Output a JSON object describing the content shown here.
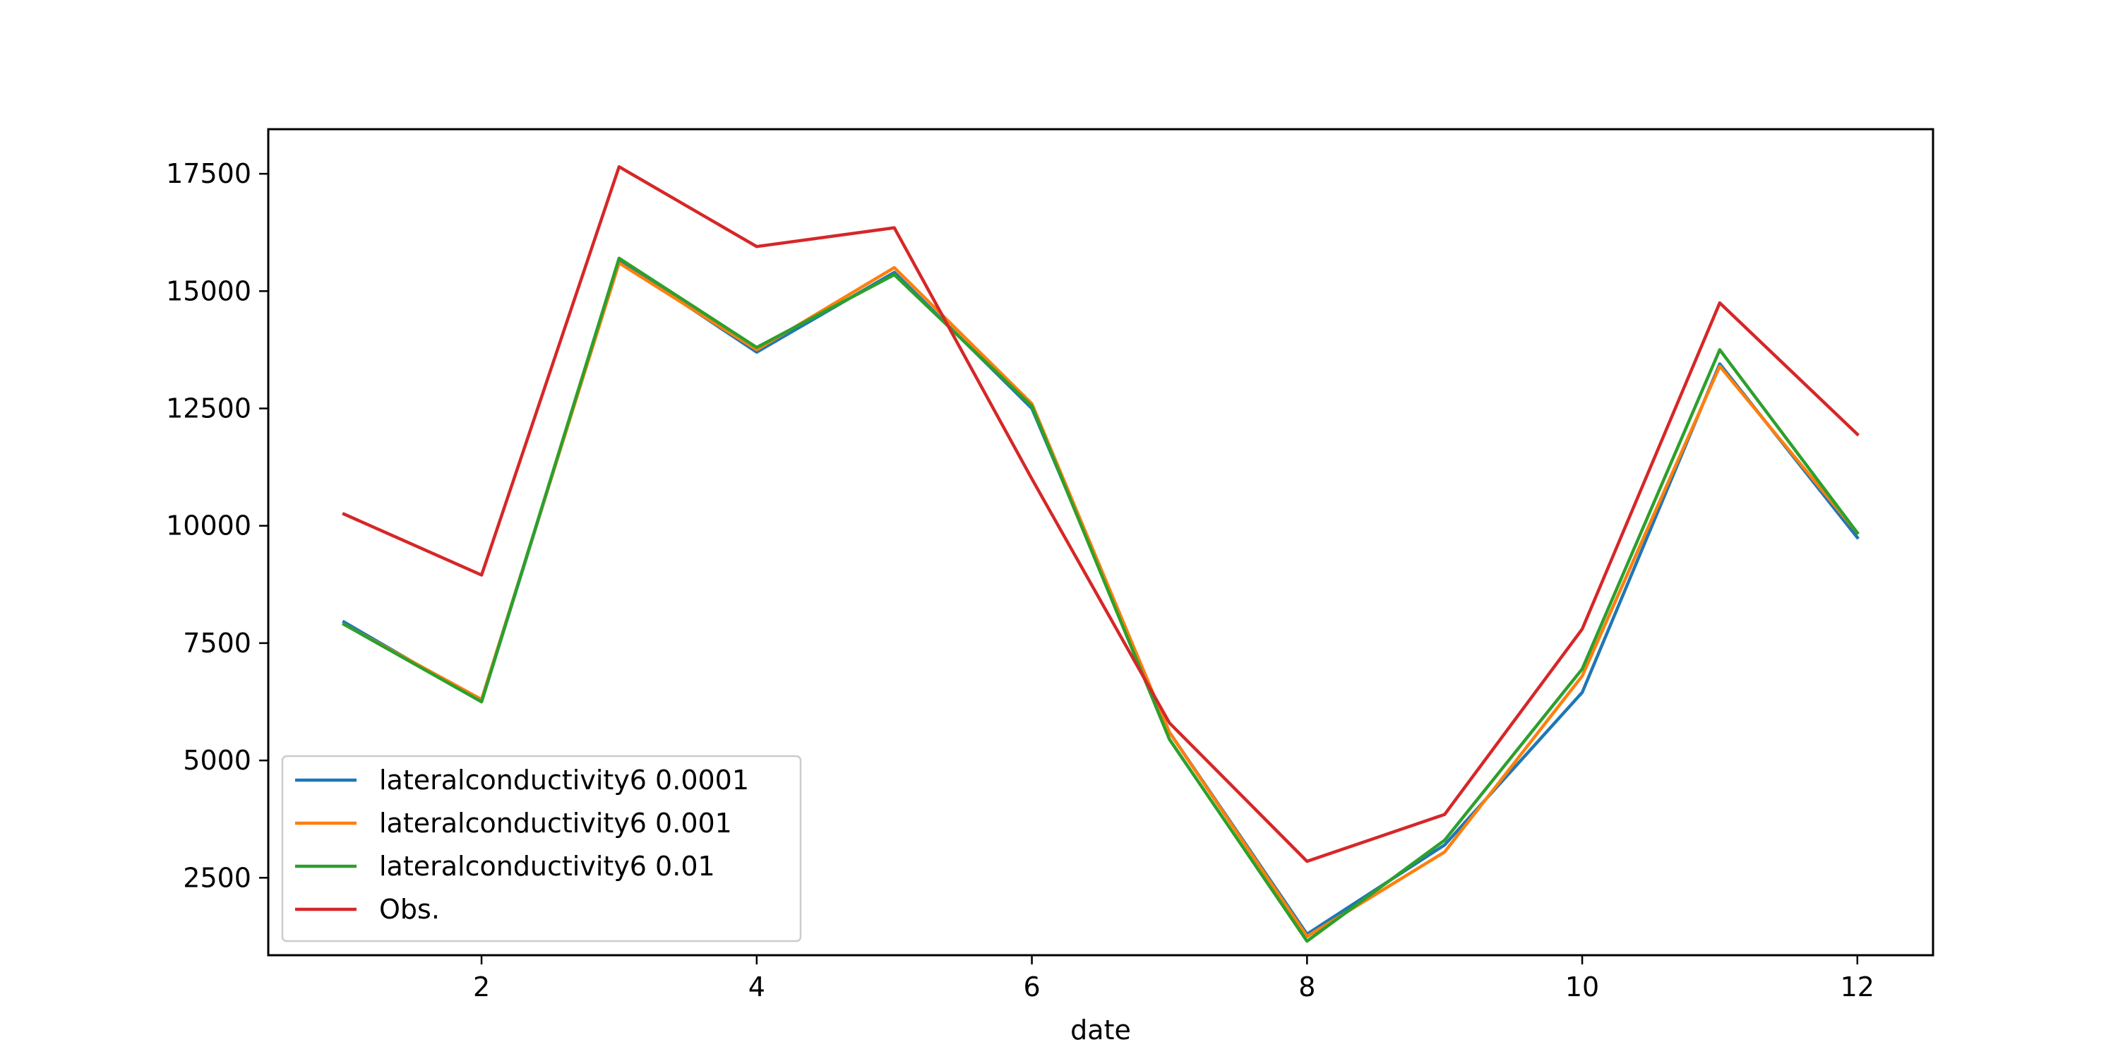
{
  "chart_data": {
    "type": "line",
    "title": "",
    "xlabel": "date",
    "ylabel": "",
    "x": [
      1,
      2,
      3,
      4,
      5,
      6,
      7,
      8,
      9,
      10,
      11,
      12
    ],
    "xlim": [
      0.45,
      12.55
    ],
    "ylim": [
      850,
      18450
    ],
    "xticks": [
      2,
      4,
      6,
      8,
      10,
      12
    ],
    "yticks": [
      2500,
      5000,
      7500,
      10000,
      12500,
      15000,
      17500
    ],
    "grid": false,
    "legend_position": "lower-left",
    "series": [
      {
        "name": "lateralconductivity6 0.0001",
        "color": "#1f77b4",
        "values": [
          7950,
          6250,
          15650,
          13700,
          15400,
          12500,
          5600,
          1300,
          3200,
          6450,
          13450,
          9750
        ]
      },
      {
        "name": "lateralconductivity6 0.001",
        "color": "#ff7f0e",
        "values": [
          7900,
          6300,
          15600,
          13750,
          15500,
          12600,
          5600,
          1250,
          3050,
          6800,
          13400,
          9850
        ]
      },
      {
        "name": "lateralconductivity6 0.01",
        "color": "#2ca02c",
        "values": [
          7900,
          6250,
          15700,
          13800,
          15350,
          12550,
          5450,
          1150,
          3300,
          6950,
          13750,
          9850
        ]
      },
      {
        "name": "Obs.",
        "color": "#d62728",
        "values": [
          10250,
          8950,
          17650,
          15950,
          16350,
          11000,
          5800,
          2850,
          3850,
          7800,
          14750,
          11950
        ]
      }
    ]
  }
}
